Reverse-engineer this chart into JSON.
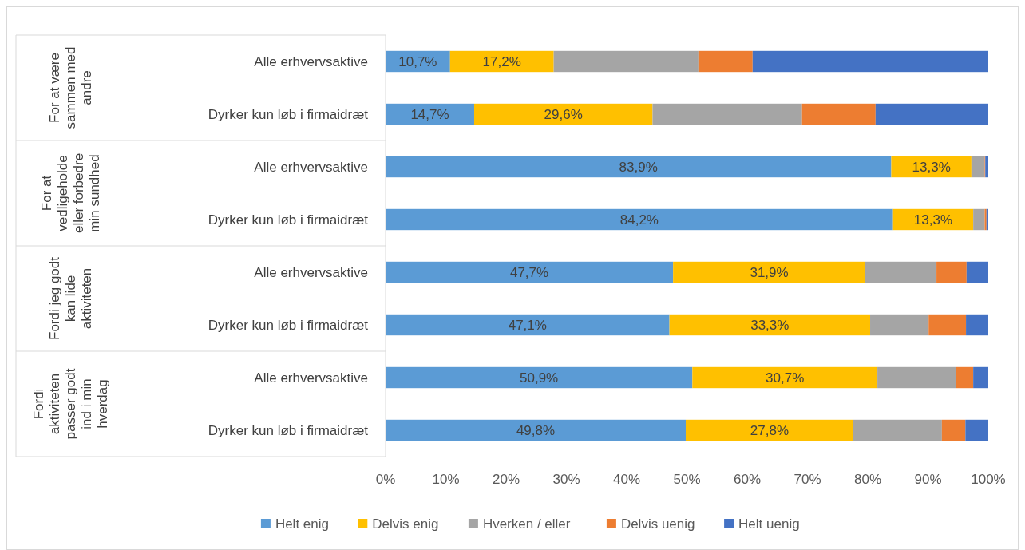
{
  "chart_data": {
    "type": "bar",
    "orientation": "horizontal",
    "stacked": true,
    "categories": [
      "Alle erhvervsaktive",
      "Dyrker kun løb i firmaidræt",
      "Alle erhvervsaktive",
      "Dyrker kun løb i firmaidræt",
      "Alle erhvervsaktive",
      "Dyrker kun løb i firmaidræt",
      "Alle erhvervsaktive",
      "Dyrker kun løb i firmaidræt"
    ],
    "series": [
      {
        "name": "Helt enig",
        "color": "#5b9bd5",
        "values": [
          10.7,
          14.7,
          83.9,
          84.2,
          47.7,
          47.1,
          50.9,
          49.8
        ],
        "value_labels": [
          "10,7%",
          "14,7%",
          "83,9%",
          "84,2%",
          "47,7%",
          "47,1%",
          "50,9%",
          "49,8%"
        ]
      },
      {
        "name": "Delvis enig",
        "color": "#ffc000",
        "values": [
          17.2,
          29.6,
          13.3,
          13.3,
          31.9,
          33.3,
          30.7,
          27.8
        ],
        "value_labels": [
          "17,2%",
          "29,6%",
          "13,3%",
          "13,3%",
          "31,9%",
          "33,3%",
          "30,7%",
          "27,8%"
        ]
      },
      {
        "name": "Hverken / eller",
        "color": "#a5a5a5",
        "values": [
          24.0,
          24.8,
          2.2,
          1.9,
          11.8,
          9.7,
          13.1,
          14.7
        ]
      },
      {
        "name": "Delvis uenig",
        "color": "#ed7d31",
        "values": [
          9.0,
          12.2,
          0.1,
          0.3,
          5.0,
          6.2,
          2.8,
          3.9
        ]
      },
      {
        "name": "Helt uenig",
        "color": "#4472c4",
        "values": [
          39.1,
          18.7,
          0.5,
          0.3,
          3.6,
          3.7,
          2.5,
          3.8
        ]
      }
    ],
    "xlim": [
      0,
      100
    ],
    "xticks": [
      {
        "value": 0,
        "label": "0%"
      },
      {
        "value": 10,
        "label": "10%"
      },
      {
        "value": 20,
        "label": "20%"
      },
      {
        "value": 30,
        "label": "30%"
      },
      {
        "value": 40,
        "label": "40%"
      },
      {
        "value": 50,
        "label": "50%"
      },
      {
        "value": 60,
        "label": "60%"
      },
      {
        "value": 70,
        "label": "70%"
      },
      {
        "value": 80,
        "label": "80%"
      },
      {
        "value": 90,
        "label": "90%"
      },
      {
        "value": 100,
        "label": "100%"
      }
    ],
    "annotations": [
      "For at være sammen med andre",
      "For at vedligeholde eller forbedre min sundhed",
      "Fordi jeg godt kan lide aktiviteten",
      "Fordi aktiviteten passer godt ind i min hverdag"
    ],
    "legend": "bottom",
    "grid": false
  }
}
